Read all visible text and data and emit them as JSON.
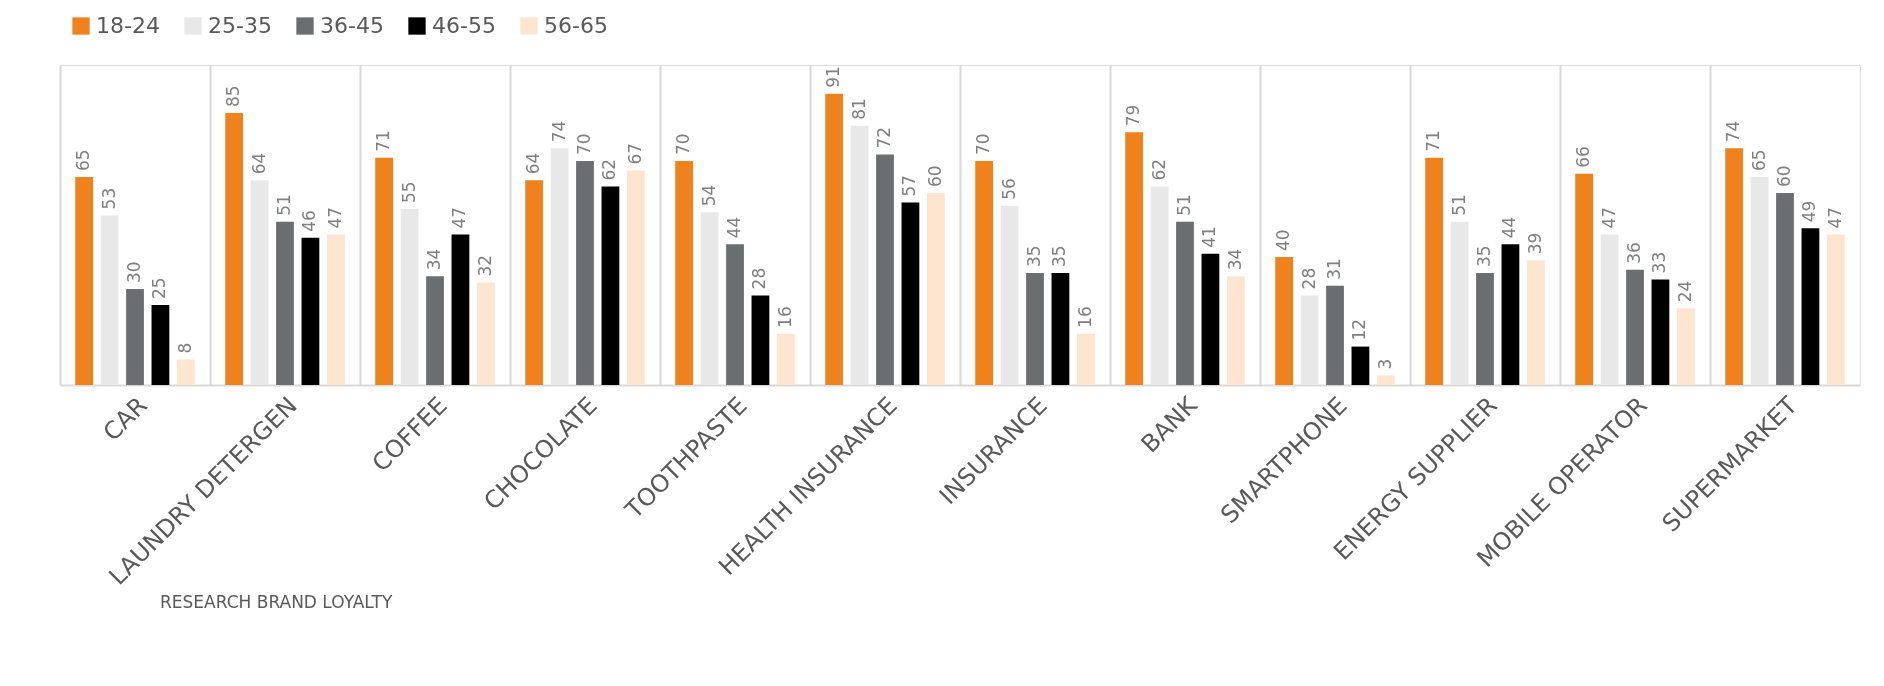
{
  "chart_data": {
    "type": "bar",
    "categories": [
      "CAR",
      "LAUNDRY DETERGEN",
      "COFFEE",
      "CHOCOLATE",
      "TOOTHPASTE",
      "HEALTH INSURANCE",
      "INSURANCE",
      "BANK",
      "SMARTPHONE",
      "ENERGY SUPPLIER",
      "MOBILE OPERATOR",
      "SUPERMARKET"
    ],
    "series": [
      {
        "name": "18-24",
        "color": "#f0821e",
        "values": [
          65,
          85,
          71,
          64,
          70,
          91,
          70,
          79,
          40,
          71,
          66,
          74
        ]
      },
      {
        "name": "25-35",
        "color": "#e8e8e8",
        "values": [
          53,
          64,
          55,
          74,
          54,
          81,
          56,
          62,
          28,
          51,
          47,
          65
        ]
      },
      {
        "name": "36-45",
        "color": "#6b6e70",
        "values": [
          30,
          51,
          34,
          70,
          44,
          72,
          35,
          51,
          31,
          35,
          36,
          60
        ]
      },
      {
        "name": "46-55",
        "color": "#000000",
        "values": [
          25,
          46,
          47,
          62,
          28,
          57,
          35,
          41,
          12,
          44,
          33,
          49
        ]
      },
      {
        "name": "56-65",
        "color": "#fde5d0",
        "values": [
          8,
          47,
          32,
          67,
          16,
          60,
          16,
          34,
          3,
          39,
          24,
          47
        ]
      }
    ],
    "ylim": [
      0,
      100
    ],
    "data_labels": true,
    "grid": "x",
    "legend": "top",
    "tick_labels": "x",
    "annotations": [
      "RESEARCH BRAND LOYALTY"
    ]
  }
}
